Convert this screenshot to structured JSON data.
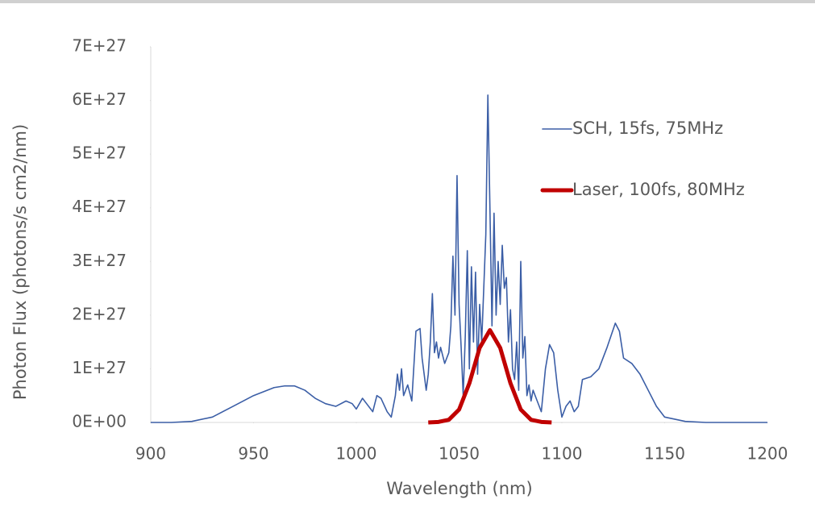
{
  "chart_data": {
    "type": "line",
    "x_label": "Wavelength (nm)",
    "y_label": "Photon Flux (photons/s cm2/nm)",
    "xlim": [
      900,
      1200
    ],
    "xticks": [
      900,
      950,
      1000,
      1050,
      1100,
      1150,
      1200
    ],
    "ylim": [
      0,
      7e+27
    ],
    "yticks": [
      {
        "value": 0,
        "label": "0E+00"
      },
      {
        "value": 1e+27,
        "label": "1E+27"
      },
      {
        "value": 2e+27,
        "label": "2E+27"
      },
      {
        "value": 3e+27,
        "label": "3E+27"
      },
      {
        "value": 4e+27,
        "label": "4E+27"
      },
      {
        "value": 5e+27,
        "label": "5E+27"
      },
      {
        "value": 6e+27,
        "label": "6E+27"
      },
      {
        "value": 7e+27,
        "label": "7E+27"
      }
    ],
    "grid": false,
    "legend": "right",
    "series": [
      {
        "name": "SCH, 15fs, 75MHz",
        "color": "#3b5ea6",
        "width": 1.6,
        "x": [
          900,
          910,
          920,
          930,
          940,
          950,
          960,
          965,
          970,
          975,
          980,
          985,
          990,
          995,
          998,
          1000,
          1003,
          1005,
          1008,
          1010,
          1012,
          1015,
          1017,
          1019,
          1020,
          1021,
          1022,
          1023,
          1025,
          1027,
          1029,
          1031,
          1032,
          1034,
          1035,
          1036,
          1037,
          1038,
          1039,
          1040,
          1041,
          1043,
          1045,
          1046,
          1047,
          1048,
          1049,
          1050,
          1051,
          1052,
          1053,
          1054,
          1055,
          1056,
          1057,
          1058,
          1059,
          1060,
          1061,
          1063,
          1064,
          1065,
          1066,
          1067,
          1068,
          1069,
          1070,
          1071,
          1072,
          1073,
          1074,
          1075,
          1076,
          1077,
          1078,
          1079,
          1080,
          1081,
          1082,
          1083,
          1084,
          1085,
          1086,
          1088,
          1090,
          1092,
          1094,
          1096,
          1098,
          1100,
          1102,
          1104,
          1106,
          1108,
          1110,
          1114,
          1118,
          1122,
          1126,
          1128,
          1130,
          1134,
          1138,
          1142,
          1146,
          1150,
          1160,
          1170,
          1180,
          1190,
          1200
        ],
        "values": [
          0,
          0,
          2e+25,
          1e+26,
          3e+26,
          5e+26,
          6.5e+26,
          6.8e+26,
          6.8e+26,
          6e+26,
          4.5e+26,
          3.5e+26,
          3e+26,
          4e+26,
          3.5e+26,
          2.5e+26,
          4.5e+26,
          3.5e+26,
          2e+26,
          5e+26,
          4.5e+26,
          2e+26,
          1e+26,
          5e+26,
          9e+26,
          6e+26,
          1e+27,
          5e+26,
          7e+26,
          4e+26,
          1.7e+27,
          1.75e+27,
          1.2e+27,
          6e+26,
          9e+26,
          1.5e+27,
          2.4e+27,
          1.3e+27,
          1.5e+27,
          1.2e+27,
          1.4e+27,
          1.1e+27,
          1.3e+27,
          1.8e+27,
          3.1e+27,
          2e+27,
          4.6e+27,
          2.2e+27,
          1.4e+27,
          5e+26,
          1.6e+27,
          3.2e+27,
          1e+27,
          2.9e+27,
          1.5e+27,
          2.8e+27,
          9e+26,
          2.2e+27,
          1.5e+27,
          3.5e+27,
          6.1e+27,
          4e+27,
          1.8e+27,
          3.9e+27,
          2e+27,
          3e+27,
          2.2e+27,
          3.3e+27,
          2.5e+27,
          2.7e+27,
          1.5e+27,
          2.1e+27,
          1e+27,
          8e+26,
          1.5e+27,
          6e+26,
          3e+27,
          1.2e+27,
          1.6e+27,
          5e+26,
          7e+26,
          4e+26,
          6e+26,
          4e+26,
          2e+26,
          1e+27,
          1.45e+27,
          1.3e+27,
          6e+26,
          1e+26,
          3e+26,
          4e+26,
          2e+26,
          3e+26,
          8e+26,
          8.5e+26,
          1e+27,
          1.4e+27,
          1.85e+27,
          1.7e+27,
          1.2e+27,
          1.1e+27,
          9e+26,
          6e+26,
          3e+26,
          1e+26,
          2e+25,
          0,
          0,
          0,
          0
        ]
      },
      {
        "name": "Laser, 100fs, 80MHz",
        "color": "#c00000",
        "width": 5,
        "x": [
          1035,
          1040,
          1045,
          1050,
          1055,
          1060,
          1065,
          1070,
          1075,
          1080,
          1085,
          1090,
          1095
        ],
        "values": [
          0,
          1e+25,
          5e+25,
          2.4e+26,
          7.3e+26,
          1.39e+27,
          1.72e+27,
          1.39e+27,
          7.3e+26,
          2.4e+26,
          5e+25,
          1e+25,
          0
        ]
      }
    ]
  }
}
